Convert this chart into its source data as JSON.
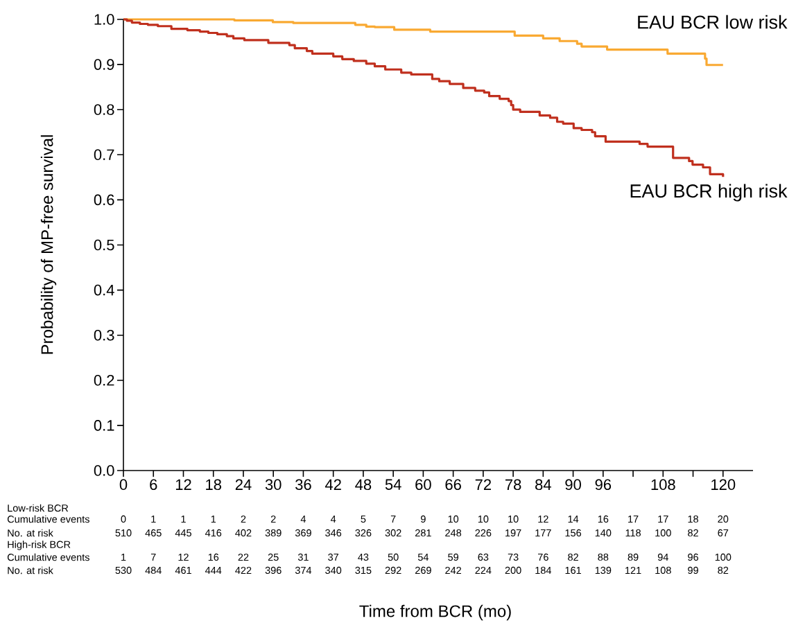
{
  "chart_data": {
    "type": "step",
    "ylabel": "Probability of MP-free survival",
    "xlim": [
      0,
      126
    ],
    "ylim": [
      0,
      1
    ],
    "xticks": [
      0,
      6,
      12,
      18,
      24,
      30,
      36,
      42,
      48,
      54,
      60,
      66,
      72,
      78,
      84,
      90,
      96,
      {
        "value": 102,
        "label": null
      },
      108,
      {
        "value": 114,
        "label": null
      },
      120
    ],
    "yticks": [
      {
        "value": 0,
        "label": "0.0"
      },
      0.1,
      0.2,
      0.3,
      0.4,
      0.5,
      0.6,
      0.7,
      0.8,
      0.9,
      {
        "value": 1,
        "label": "1.0"
      }
    ],
    "grid": false,
    "legend": false,
    "series": [
      {
        "name": "EAU BCR low risk",
        "color": "#f9a932",
        "x": [
          0,
          0.5,
          22.2,
          29.9,
          34,
          46.4,
          48.6,
          50.3,
          54.2,
          61.4,
          78.3,
          84,
          87.3,
          90.8,
          91.7,
          96.8,
          108.9,
          116.4,
          116.7,
          120
        ],
        "values": [
          1.0,
          1.0,
          0.998,
          0.994,
          0.992,
          0.988,
          0.984,
          0.983,
          0.977,
          0.973,
          0.964,
          0.958,
          0.952,
          0.946,
          0.94,
          0.933,
          0.924,
          0.913,
          0.899,
          0.899
        ]
      },
      {
        "name": "EAU BCR high risk",
        "color": "#c0301e",
        "x": [
          0,
          0.7,
          1.7,
          3.3,
          4.9,
          6.9,
          9.6,
          12.8,
          15.3,
          17,
          18.8,
          20.7,
          22,
          24.2,
          29,
          33.2,
          34.3,
          36.7,
          37.8,
          42,
          43.8,
          46.1,
          48.6,
          50.3,
          52.4,
          55.6,
          57.6,
          61.8,
          63.2,
          65.3,
          68,
          70.4,
          72.2,
          73.2,
          75.3,
          77.1,
          77.6,
          78,
          79.4,
          83.3,
          85.4,
          86.8,
          88,
          90.1,
          91.7,
          93.8,
          94.4,
          96.5,
          103.3,
          104.9,
          110,
          113.2,
          113.9,
          116,
          117.4,
          120
        ],
        "values": [
          1.0,
          0.997,
          0.993,
          0.99,
          0.988,
          0.985,
          0.979,
          0.976,
          0.973,
          0.97,
          0.967,
          0.963,
          0.958,
          0.954,
          0.948,
          0.943,
          0.936,
          0.93,
          0.924,
          0.918,
          0.912,
          0.908,
          0.902,
          0.896,
          0.889,
          0.882,
          0.878,
          0.868,
          0.863,
          0.857,
          0.848,
          0.842,
          0.838,
          0.83,
          0.824,
          0.819,
          0.81,
          0.8,
          0.795,
          0.787,
          0.782,
          0.773,
          0.769,
          0.759,
          0.755,
          0.75,
          0.741,
          0.729,
          0.724,
          0.718,
          0.693,
          0.686,
          0.678,
          0.672,
          0.657,
          0.651
        ]
      }
    ],
    "annotations": [
      "Low-risk BCR",
      "Cumulative events",
      "0",
      "1",
      "1",
      "1",
      "2",
      "2",
      "4",
      "4",
      "5",
      "7",
      "9",
      "10",
      "10",
      "10",
      "12",
      "14",
      "16",
      "17",
      "17",
      "18",
      "20",
      "No. at risk",
      "510",
      "465",
      "445",
      "416",
      "402",
      "389",
      "369",
      "346",
      "326",
      "302",
      "281",
      "248",
      "226",
      "197",
      "177",
      "156",
      "140",
      "118",
      "100",
      "82",
      "67",
      "High-risk BCR",
      "Cumulative events",
      "1",
      "7",
      "12",
      "16",
      "22",
      "25",
      "31",
      "37",
      "43",
      "50",
      "54",
      "59",
      "63",
      "73",
      "76",
      "82",
      "88",
      "89",
      "94",
      "96",
      "100",
      "No. at risk",
      "530",
      "484",
      "461",
      "444",
      "422",
      "396",
      "374",
      "340",
      "315",
      "292",
      "269",
      "242",
      "224",
      "200",
      "184",
      "161",
      "139",
      "121",
      "108",
      "99",
      "82",
      "Time from BCR (mo)"
    ]
  }
}
